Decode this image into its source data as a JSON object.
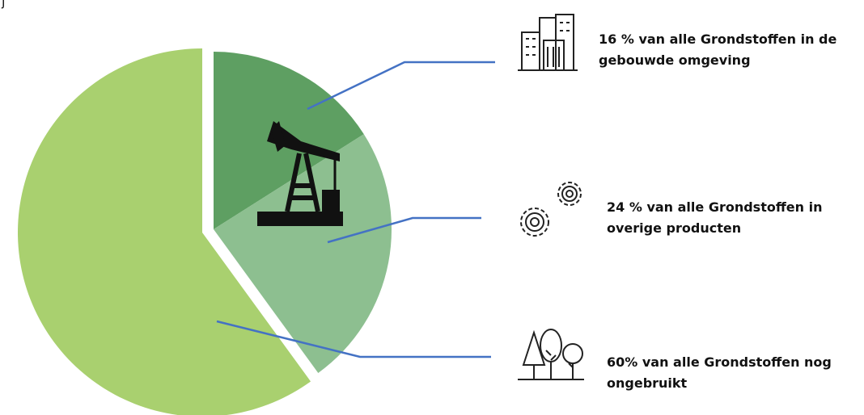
{
  "chart_data": {
    "type": "pie",
    "corner_text": "j",
    "categories": [
      "16 % van alle Grondstoffen in de gebouwde omgeving",
      "24 % van alle Grondstoffen in overige producten",
      "60% van alle Grondstoffen nog ongebruikt"
    ],
    "values": [
      16,
      24,
      60
    ],
    "colors": [
      "#5e9f62",
      "#8dbf90",
      "#a9d06f"
    ]
  }
}
